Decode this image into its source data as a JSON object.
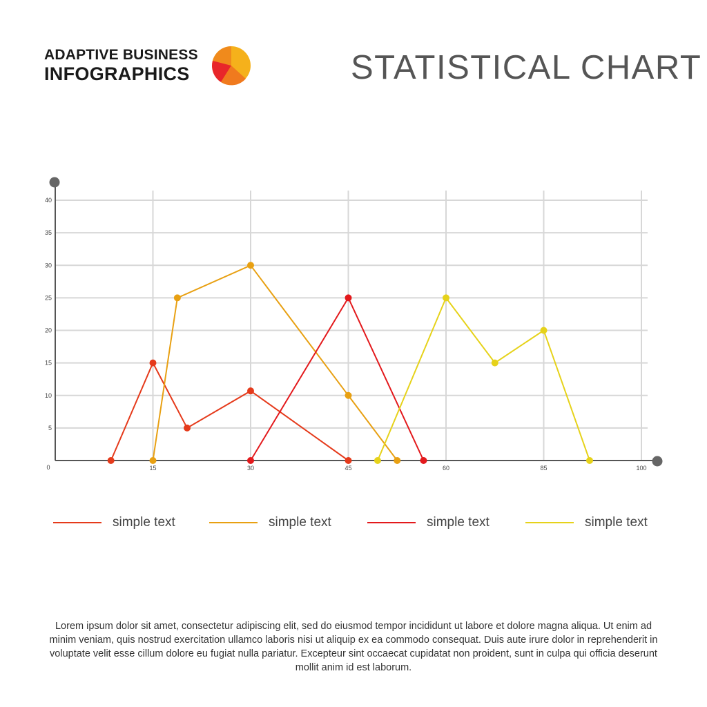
{
  "header": {
    "brand_line1": "ADAPTIVE BUSINESS",
    "brand_line2": "INFOGRAPHICS",
    "title": "STATISTICAL CHART"
  },
  "colors": {
    "red": "#e3191c",
    "orange_red": "#e53a1b",
    "orange": "#e8a012",
    "yellow": "#e6d21a",
    "grid": "#d7d7d7",
    "axis": "#555555",
    "axis_cap": "#666666"
  },
  "legend": [
    {
      "label": "simple text",
      "color": "#e53a1b"
    },
    {
      "label": "simple text",
      "color": "#e8a012"
    },
    {
      "label": "simple text",
      "color": "#e3191c"
    },
    {
      "label": "simple text",
      "color": "#e6d21a"
    }
  ],
  "footer": {
    "text": "Lorem ipsum dolor sit amet, consectetur adipiscing elit, sed do eiusmod tempor incididunt ut labore et dolore magna aliqua. Ut enim ad minim veniam, quis nostrud exercitation ullamco laboris nisi ut aliquip ex ea commodo consequat. Duis aute irure dolor in reprehenderit in voluptate velit esse cillum dolore eu fugiat nulla pariatur. Excepteur sint occaecat cupidatat non proident, sunt in culpa qui officia deserunt mollit anim id est laborum."
  },
  "chart_data": {
    "type": "line",
    "title": "STATISTICAL CHART",
    "xlabel": "",
    "ylabel": "",
    "origin_label": "0",
    "x_ticks": [
      {
        "label": "15",
        "pos": 1
      },
      {
        "label": "30",
        "pos": 2
      },
      {
        "label": "45",
        "pos": 3
      },
      {
        "label": "60",
        "pos": 4
      },
      {
        "label": "85",
        "pos": 5
      },
      {
        "label": "100",
        "pos": 6
      }
    ],
    "y_ticks": [
      5,
      10,
      15,
      20,
      25,
      30,
      35,
      40
    ],
    "xlim": [
      0,
      6
    ],
    "ylim": [
      0,
      40
    ],
    "grid": true,
    "legend_position": "bottom",
    "series": [
      {
        "color": "#e53a1b",
        "points": [
          [
            0.57,
            0
          ],
          [
            1.0,
            15
          ],
          [
            1.35,
            5
          ],
          [
            2.0,
            10.7
          ],
          [
            3.0,
            0
          ]
        ]
      },
      {
        "color": "#e8a012",
        "points": [
          [
            1.0,
            0
          ],
          [
            1.25,
            25
          ],
          [
            2.0,
            30
          ],
          [
            3.0,
            10
          ],
          [
            3.5,
            0
          ]
        ]
      },
      {
        "color": "#e3191c",
        "points": [
          [
            2.0,
            0
          ],
          [
            3.0,
            25
          ],
          [
            3.77,
            0
          ]
        ]
      },
      {
        "color": "#e6d21a",
        "points": [
          [
            3.3,
            0
          ],
          [
            4.0,
            25
          ],
          [
            4.5,
            15
          ],
          [
            5.0,
            20
          ],
          [
            5.47,
            0
          ]
        ]
      }
    ]
  }
}
